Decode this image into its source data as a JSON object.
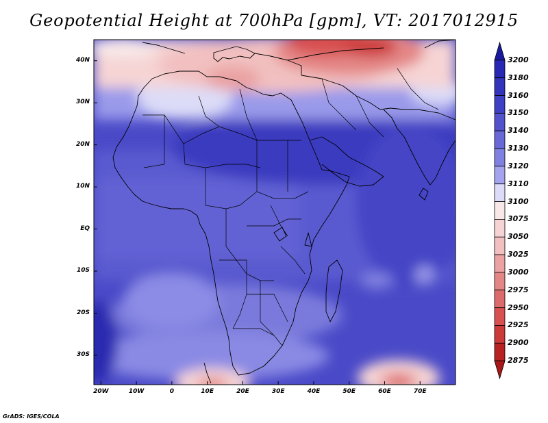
{
  "title": "Geopotential Height at 700hPa [gpm], VT: 2017012915",
  "credit": "GrADS: IGES/COLA",
  "map": {
    "lon_range": [
      -22,
      80
    ],
    "lat_range": [
      -37,
      45
    ],
    "x_ticks": [
      "20W",
      "10W",
      "0",
      "10E",
      "20E",
      "30E",
      "40E",
      "50E",
      "60E",
      "70E"
    ],
    "x_tick_lons": [
      -20,
      -10,
      0,
      10,
      20,
      30,
      40,
      50,
      60,
      70
    ],
    "y_ticks": [
      "40N",
      "30N",
      "20N",
      "10N",
      "EQ",
      "10S",
      "20S",
      "30S"
    ],
    "y_tick_lats": [
      40,
      30,
      20,
      10,
      0,
      -10,
      -20,
      -30
    ]
  },
  "colorbar": {
    "levels": [
      "3200",
      "3180",
      "3160",
      "3150",
      "3140",
      "3130",
      "3120",
      "3110",
      "3100",
      "3075",
      "3050",
      "3025",
      "3000",
      "2975",
      "2950",
      "2925",
      "2900",
      "2875"
    ],
    "colors": [
      "#1a1aa0",
      "#2828b4",
      "#3333bb",
      "#4040c4",
      "#5252cc",
      "#6868d6",
      "#8080e0",
      "#a4a4ee",
      "#dcdcf8",
      "#f8e8e8",
      "#f6d4d4",
      "#f2c0c0",
      "#eaa2a2",
      "#e48686",
      "#dc6c6c",
      "#d85050",
      "#cc3a3a",
      "#b82222",
      "#a81818"
    ]
  }
}
